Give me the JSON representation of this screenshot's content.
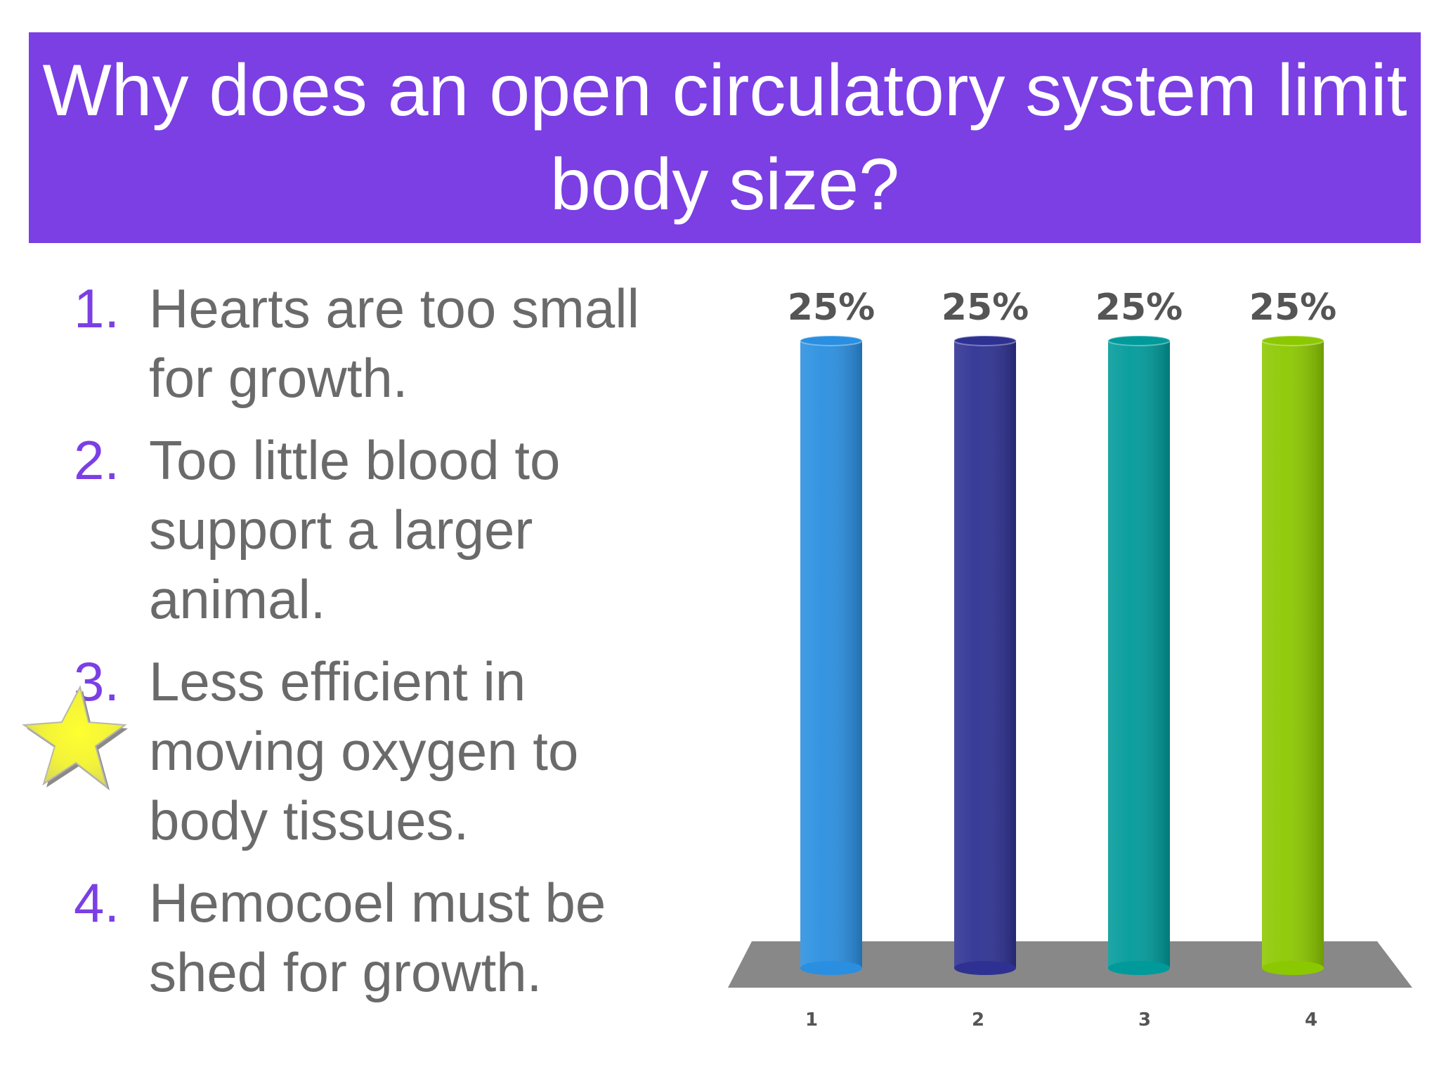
{
  "slide": {
    "title": "Why does an open circulatory system limit body size?",
    "answers": [
      {
        "number": "1.",
        "text": "Hearts are too small for growth."
      },
      {
        "number": "2.",
        "text": "Too little blood to support a larger animal."
      },
      {
        "number": "3.",
        "text": "Less efficient in moving oxygen to body tissues."
      },
      {
        "number": "4.",
        "text": "Hemocoel must be shed for growth."
      }
    ],
    "correct_answer_marker": "star-icon",
    "correct_answer_index": 3
  },
  "colors": {
    "title_background": "#7b3fe4",
    "title_text": "#ffffff",
    "answer_number": "#7b3fe4",
    "answer_text": "#6a6a6a",
    "bars": [
      "#2a8fe0",
      "#2e3192",
      "#009a9a",
      "#8cc800"
    ],
    "floor": "#888888"
  },
  "chart_data": {
    "type": "bar",
    "categories": [
      "1",
      "2",
      "3",
      "4"
    ],
    "values": [
      25,
      25,
      25,
      25
    ],
    "value_labels": [
      "25%",
      "25%",
      "25%",
      "25%"
    ],
    "ylim": [
      0,
      25
    ],
    "grid": false,
    "title": "",
    "xlabel": "",
    "ylabel": ""
  }
}
